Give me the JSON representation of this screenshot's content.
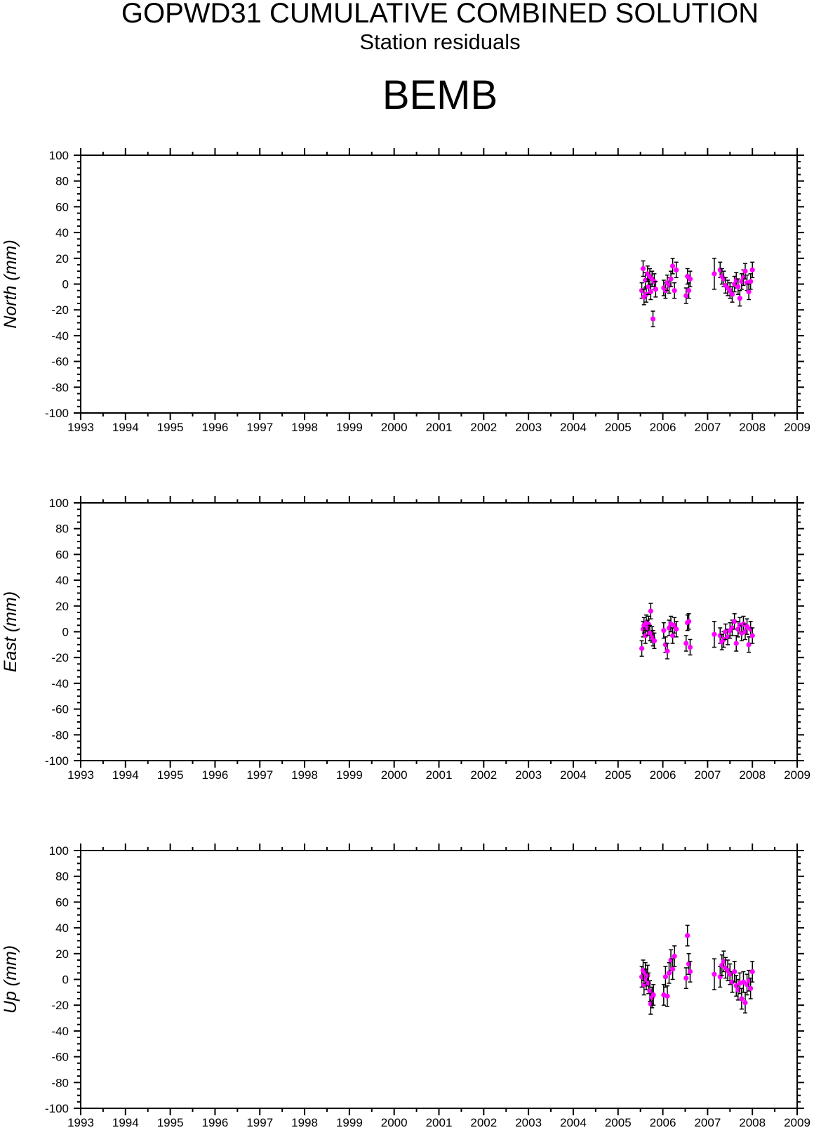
{
  "title": "GOPWD31 CUMULATIVE COMBINED SOLUTION",
  "subtitle": "Station residuals",
  "station": "BEMB",
  "colors": {
    "point": "#ff00ff",
    "errorbar": "#000000",
    "axis": "#000000"
  },
  "chart_data": [
    {
      "type": "scatter",
      "ylabel": "North (mm)",
      "xlim": [
        1993,
        2009
      ],
      "ylim": [
        -100,
        100
      ],
      "x_ticks": [
        "1993",
        "1994",
        "1995",
        "1996",
        "1997",
        "1998",
        "1999",
        "2000",
        "2001",
        "2002",
        "2003",
        "2004",
        "2005",
        "2006",
        "2007",
        "2008",
        "2009"
      ],
      "y_ticks": [
        "100",
        "80",
        "60",
        "40",
        "20",
        "0",
        "-20",
        "-40",
        "-60",
        "-80",
        "-100"
      ],
      "points": [
        {
          "x": 2005.53,
          "y": -5,
          "err": 6
        },
        {
          "x": 2005.56,
          "y": 12,
          "err": 6
        },
        {
          "x": 2005.58,
          "y": -10,
          "err": 6
        },
        {
          "x": 2005.61,
          "y": 3,
          "err": 6
        },
        {
          "x": 2005.63,
          "y": -8,
          "err": 6
        },
        {
          "x": 2005.66,
          "y": 8,
          "err": 6
        },
        {
          "x": 2005.68,
          "y": -2,
          "err": 6
        },
        {
          "x": 2005.71,
          "y": 6,
          "err": 6
        },
        {
          "x": 2005.73,
          "y": -6,
          "err": 6
        },
        {
          "x": 2005.76,
          "y": 4,
          "err": 6
        },
        {
          "x": 2005.78,
          "y": -27,
          "err": 6
        },
        {
          "x": 2005.81,
          "y": 2,
          "err": 6
        },
        {
          "x": 2005.84,
          "y": -4,
          "err": 6
        },
        {
          "x": 2006.02,
          "y": -3,
          "err": 6
        },
        {
          "x": 2006.06,
          "y": -5,
          "err": 6
        },
        {
          "x": 2006.1,
          "y": 1,
          "err": 6
        },
        {
          "x": 2006.14,
          "y": -1,
          "err": 6
        },
        {
          "x": 2006.18,
          "y": 4,
          "err": 6
        },
        {
          "x": 2006.22,
          "y": 14,
          "err": 6
        },
        {
          "x": 2006.26,
          "y": -5,
          "err": 6
        },
        {
          "x": 2006.3,
          "y": 11,
          "err": 6
        },
        {
          "x": 2006.52,
          "y": -9,
          "err": 6
        },
        {
          "x": 2006.55,
          "y": 6,
          "err": 6
        },
        {
          "x": 2006.58,
          "y": -5,
          "err": 6
        },
        {
          "x": 2006.61,
          "y": 4,
          "err": 6
        },
        {
          "x": 2007.15,
          "y": 8,
          "err": 12
        },
        {
          "x": 2007.28,
          "y": 11,
          "err": 6
        },
        {
          "x": 2007.32,
          "y": 6,
          "err": 6
        },
        {
          "x": 2007.36,
          "y": 4,
          "err": 6
        },
        {
          "x": 2007.4,
          "y": -1,
          "err": 6
        },
        {
          "x": 2007.45,
          "y": -3,
          "err": 6
        },
        {
          "x": 2007.5,
          "y": -5,
          "err": 6
        },
        {
          "x": 2007.55,
          "y": -8,
          "err": 6
        },
        {
          "x": 2007.6,
          "y": 0,
          "err": 6
        },
        {
          "x": 2007.64,
          "y": 3,
          "err": 6
        },
        {
          "x": 2007.68,
          "y": -2,
          "err": 6
        },
        {
          "x": 2007.72,
          "y": -11,
          "err": 6
        },
        {
          "x": 2007.76,
          "y": 2,
          "err": 6
        },
        {
          "x": 2007.8,
          "y": 5,
          "err": 6
        },
        {
          "x": 2007.84,
          "y": 10,
          "err": 6
        },
        {
          "x": 2007.88,
          "y": 1,
          "err": 6
        },
        {
          "x": 2007.92,
          "y": -6,
          "err": 6
        },
        {
          "x": 2007.96,
          "y": 2,
          "err": 6
        },
        {
          "x": 2008.0,
          "y": 11,
          "err": 6
        }
      ]
    },
    {
      "type": "scatter",
      "ylabel": "East (mm)",
      "xlim": [
        1993,
        2009
      ],
      "ylim": [
        -100,
        100
      ],
      "x_ticks": [
        "1993",
        "1994",
        "1995",
        "1996",
        "1997",
        "1998",
        "1999",
        "2000",
        "2001",
        "2002",
        "2003",
        "2004",
        "2005",
        "2006",
        "2007",
        "2008",
        "2009"
      ],
      "y_ticks": [
        "100",
        "80",
        "60",
        "40",
        "20",
        "0",
        "-20",
        "-40",
        "-60",
        "-80",
        "-100"
      ],
      "points": [
        {
          "x": 2005.53,
          "y": -13,
          "err": 6
        },
        {
          "x": 2005.56,
          "y": 2,
          "err": 6
        },
        {
          "x": 2005.58,
          "y": 5,
          "err": 6
        },
        {
          "x": 2005.61,
          "y": -3,
          "err": 6
        },
        {
          "x": 2005.63,
          "y": 7,
          "err": 6
        },
        {
          "x": 2005.66,
          "y": 3,
          "err": 6
        },
        {
          "x": 2005.68,
          "y": 6,
          "err": 6
        },
        {
          "x": 2005.71,
          "y": -1,
          "err": 6
        },
        {
          "x": 2005.73,
          "y": 16,
          "err": 6
        },
        {
          "x": 2005.76,
          "y": -2,
          "err": 6
        },
        {
          "x": 2005.78,
          "y": -5,
          "err": 6
        },
        {
          "x": 2005.81,
          "y": -7,
          "err": 6
        },
        {
          "x": 2006.02,
          "y": 1,
          "err": 6
        },
        {
          "x": 2006.06,
          "y": -10,
          "err": 6
        },
        {
          "x": 2006.1,
          "y": -15,
          "err": 6
        },
        {
          "x": 2006.14,
          "y": 3,
          "err": 6
        },
        {
          "x": 2006.18,
          "y": 6,
          "err": 6
        },
        {
          "x": 2006.22,
          "y": -3,
          "err": 6
        },
        {
          "x": 2006.26,
          "y": 5,
          "err": 6
        },
        {
          "x": 2006.3,
          "y": 2,
          "err": 6
        },
        {
          "x": 2006.52,
          "y": -9,
          "err": 6
        },
        {
          "x": 2006.55,
          "y": 7,
          "err": 6
        },
        {
          "x": 2006.58,
          "y": 8,
          "err": 6
        },
        {
          "x": 2006.61,
          "y": -12,
          "err": 6
        },
        {
          "x": 2007.15,
          "y": -2,
          "err": 10
        },
        {
          "x": 2007.28,
          "y": -3,
          "err": 6
        },
        {
          "x": 2007.32,
          "y": -8,
          "err": 6
        },
        {
          "x": 2007.36,
          "y": -6,
          "err": 6
        },
        {
          "x": 2007.4,
          "y": 0,
          "err": 6
        },
        {
          "x": 2007.45,
          "y": -4,
          "err": 6
        },
        {
          "x": 2007.5,
          "y": 1,
          "err": 6
        },
        {
          "x": 2007.55,
          "y": 3,
          "err": 6
        },
        {
          "x": 2007.6,
          "y": 8,
          "err": 6
        },
        {
          "x": 2007.64,
          "y": -9,
          "err": 6
        },
        {
          "x": 2007.68,
          "y": 2,
          "err": 6
        },
        {
          "x": 2007.72,
          "y": 5,
          "err": 6
        },
        {
          "x": 2007.76,
          "y": -1,
          "err": 6
        },
        {
          "x": 2007.8,
          "y": 6,
          "err": 6
        },
        {
          "x": 2007.84,
          "y": 0,
          "err": 6
        },
        {
          "x": 2007.88,
          "y": 4,
          "err": 6
        },
        {
          "x": 2007.92,
          "y": -10,
          "err": 6
        },
        {
          "x": 2007.96,
          "y": 2,
          "err": 6
        },
        {
          "x": 2008.0,
          "y": -3,
          "err": 6
        }
      ]
    },
    {
      "type": "scatter",
      "ylabel": "Up (mm)",
      "xlim": [
        1993,
        2009
      ],
      "ylim": [
        -100,
        100
      ],
      "x_ticks": [
        "1993",
        "1994",
        "1995",
        "1996",
        "1997",
        "1998",
        "1999",
        "2000",
        "2001",
        "2002",
        "2003",
        "2004",
        "2005",
        "2006",
        "2007",
        "2008",
        "2009"
      ],
      "y_ticks": [
        "100",
        "80",
        "60",
        "40",
        "20",
        "0",
        "-20",
        "-40",
        "-60",
        "-80",
        "-100"
      ],
      "points": [
        {
          "x": 2005.53,
          "y": 2,
          "err": 8
        },
        {
          "x": 2005.56,
          "y": 7,
          "err": 8
        },
        {
          "x": 2005.58,
          "y": -4,
          "err": 8
        },
        {
          "x": 2005.61,
          "y": 5,
          "err": 8
        },
        {
          "x": 2005.63,
          "y": 0,
          "err": 8
        },
        {
          "x": 2005.66,
          "y": 3,
          "err": 8
        },
        {
          "x": 2005.68,
          "y": -3,
          "err": 8
        },
        {
          "x": 2005.71,
          "y": -9,
          "err": 8
        },
        {
          "x": 2005.73,
          "y": -19,
          "err": 8
        },
        {
          "x": 2005.76,
          "y": -14,
          "err": 8
        },
        {
          "x": 2005.79,
          "y": -12,
          "err": 8
        },
        {
          "x": 2006.02,
          "y": -12,
          "err": 8
        },
        {
          "x": 2006.06,
          "y": 2,
          "err": 8
        },
        {
          "x": 2006.1,
          "y": -13,
          "err": 8
        },
        {
          "x": 2006.14,
          "y": 5,
          "err": 8
        },
        {
          "x": 2006.18,
          "y": 15,
          "err": 8
        },
        {
          "x": 2006.22,
          "y": 8,
          "err": 8
        },
        {
          "x": 2006.26,
          "y": 18,
          "err": 8
        },
        {
          "x": 2006.52,
          "y": 1,
          "err": 8
        },
        {
          "x": 2006.55,
          "y": 34,
          "err": 8
        },
        {
          "x": 2006.58,
          "y": 12,
          "err": 8
        },
        {
          "x": 2006.61,
          "y": 6,
          "err": 8
        },
        {
          "x": 2007.15,
          "y": 4,
          "err": 12
        },
        {
          "x": 2007.28,
          "y": 2,
          "err": 8
        },
        {
          "x": 2007.32,
          "y": 11,
          "err": 8
        },
        {
          "x": 2007.36,
          "y": 14,
          "err": 8
        },
        {
          "x": 2007.4,
          "y": 9,
          "err": 8
        },
        {
          "x": 2007.45,
          "y": 7,
          "err": 8
        },
        {
          "x": 2007.5,
          "y": 4,
          "err": 8
        },
        {
          "x": 2007.55,
          "y": -2,
          "err": 8
        },
        {
          "x": 2007.6,
          "y": 6,
          "err": 8
        },
        {
          "x": 2007.64,
          "y": -5,
          "err": 8
        },
        {
          "x": 2007.68,
          "y": -8,
          "err": 8
        },
        {
          "x": 2007.72,
          "y": -3,
          "err": 8
        },
        {
          "x": 2007.76,
          "y": -15,
          "err": 8
        },
        {
          "x": 2007.8,
          "y": -2,
          "err": 8
        },
        {
          "x": 2007.84,
          "y": -18,
          "err": 8
        },
        {
          "x": 2007.88,
          "y": -4,
          "err": 8
        },
        {
          "x": 2007.92,
          "y": -1,
          "err": 8
        },
        {
          "x": 2007.96,
          "y": -7,
          "err": 8
        },
        {
          "x": 2008.0,
          "y": 6,
          "err": 8
        }
      ]
    }
  ]
}
